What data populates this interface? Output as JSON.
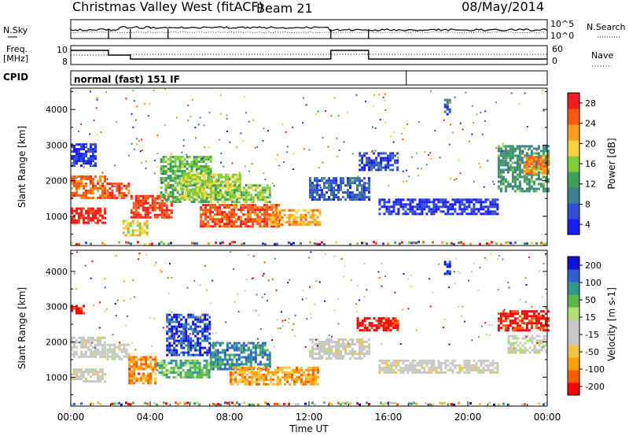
{
  "header": {
    "station": "Christmas Valley West (fitACF)",
    "beam": "Beam 21",
    "date": "08/May/2014"
  },
  "status_panels": {
    "nsky_label": "N.Sky",
    "nsearch_label": "N.Search",
    "sky_ticks": [
      "10^5",
      "10^0"
    ],
    "freq_label_1": "Freq.",
    "freq_label_2": "[MHz]",
    "freq_ticks": [
      "10",
      "8"
    ],
    "nave_label": "Nave",
    "nave_ticks": [
      "60",
      "0"
    ],
    "cpid_label": "CPID",
    "cpid_text": "normal (fast) 151 IF",
    "mode_switch_hours": [
      1.9,
      3.0,
      4.9,
      13.1,
      15.0
    ]
  },
  "chart_data": [
    {
      "type": "heatmap",
      "id": "power",
      "ylabel": "Slant Range [km]",
      "ylim": [
        180,
        4600
      ],
      "y_ticks": [
        1000,
        2000,
        3000,
        4000
      ],
      "xlim": [
        0,
        24
      ],
      "colorbar_label": "Power [dB]",
      "colorbar_ticks": [
        "28",
        "24",
        "20",
        "16",
        "12",
        "8",
        "4"
      ],
      "colorscale": [
        "#1a1aff",
        "#2f4fd8",
        "#3d7f8f",
        "#3da05a",
        "#7fcf3a",
        "#f7d23a",
        "#ff9a1a",
        "#ff5a10",
        "#ff1a1a"
      ],
      "regions": [
        {
          "t": [
            0.0,
            1.7
          ],
          "r": [
            850,
            1250
          ],
          "v": 0.95
        },
        {
          "t": [
            0.0,
            1.7
          ],
          "r": [
            1550,
            2150
          ],
          "v": 0.8
        },
        {
          "t": [
            0.0,
            1.2
          ],
          "r": [
            2450,
            3050
          ],
          "v": 0.1
        },
        {
          "t": [
            1.8,
            2.9
          ],
          "r": [
            1500,
            1950
          ],
          "v": 0.85
        },
        {
          "t": [
            2.6,
            3.8
          ],
          "r": [
            450,
            900
          ],
          "v": 0.6
        },
        {
          "t": [
            3.0,
            5.1
          ],
          "r": [
            1000,
            1600
          ],
          "v": 0.9
        },
        {
          "t": [
            4.5,
            7.0
          ],
          "r": [
            1400,
            2700
          ],
          "v": 0.45
        },
        {
          "t": [
            5.5,
            8.5
          ],
          "r": [
            1500,
            2200
          ],
          "v": 0.55
        },
        {
          "t": [
            6.5,
            10.5
          ],
          "r": [
            750,
            1350
          ],
          "v": 0.85
        },
        {
          "t": [
            7.0,
            10.0
          ],
          "r": [
            1400,
            1900
          ],
          "v": 0.5
        },
        {
          "t": [
            10.0,
            12.5
          ],
          "r": [
            750,
            1200
          ],
          "v": 0.7
        },
        {
          "t": [
            12.0,
            15.0
          ],
          "r": [
            1500,
            2100
          ],
          "v": 0.2
        },
        {
          "t": [
            14.5,
            16.5
          ],
          "r": [
            2300,
            2800
          ],
          "v": 0.15
        },
        {
          "t": [
            15.5,
            21.5
          ],
          "r": [
            1100,
            1500
          ],
          "v": 0.1
        },
        {
          "t": [
            18.8,
            19.1
          ],
          "r": [
            3900,
            4300
          ],
          "v": 0.2
        },
        {
          "t": [
            21.5,
            24.0
          ],
          "r": [
            1700,
            3000
          ],
          "v": 0.35
        },
        {
          "t": [
            22.8,
            24.0
          ],
          "r": [
            2200,
            2700
          ],
          "v": 0.75
        }
      ]
    },
    {
      "type": "heatmap",
      "id": "velocity",
      "ylabel": "Slant Range [km]",
      "ylim": [
        180,
        4600
      ],
      "y_ticks": [
        1000,
        2000,
        3000,
        4000
      ],
      "xlim": [
        0,
        24
      ],
      "x_ticks": [
        "00:00",
        "04:00",
        "08:00",
        "12:00",
        "16:00",
        "20:00",
        "00:00"
      ],
      "xlabel": "Time UT",
      "colorbar_label": "Velocity [m s-1]",
      "colorbar_ticks": [
        "200",
        "100",
        "50",
        "15",
        "-15",
        "-50",
        "-100",
        "-200"
      ],
      "colorscale": [
        "#ff0000",
        "#ff5a00",
        "#ff9f00",
        "#f4c542",
        "#c8c8c8",
        "#c8c8c8",
        "#b0e070",
        "#5ab84a",
        "#2f9a8a",
        "#2f5fd0",
        "#1010dd"
      ],
      "regions": [
        {
          "t": [
            0.0,
            1.7
          ],
          "r": [
            850,
            1250
          ],
          "v": 0.45
        },
        {
          "t": [
            0.0,
            1.7
          ],
          "r": [
            1550,
            2150
          ],
          "v": 0.45
        },
        {
          "t": [
            0.0,
            0.6
          ],
          "r": [
            2800,
            3050
          ],
          "v": 0.05
        },
        {
          "t": [
            1.8,
            2.9
          ],
          "r": [
            1500,
            1950
          ],
          "v": 0.45
        },
        {
          "t": [
            2.9,
            4.3
          ],
          "r": [
            800,
            1600
          ],
          "v": 0.2
        },
        {
          "t": [
            4.3,
            7.0
          ],
          "r": [
            1000,
            1500
          ],
          "v": 0.7
        },
        {
          "t": [
            4.8,
            7.0
          ],
          "r": [
            1600,
            2800
          ],
          "v": 0.9
        },
        {
          "t": [
            7.0,
            10.0
          ],
          "r": [
            1200,
            2000
          ],
          "v": 0.8
        },
        {
          "t": [
            8.0,
            12.5
          ],
          "r": [
            800,
            1300
          ],
          "v": 0.25
        },
        {
          "t": [
            12.0,
            15.0
          ],
          "r": [
            1500,
            2100
          ],
          "v": 0.45
        },
        {
          "t": [
            14.4,
            16.5
          ],
          "r": [
            2300,
            2700
          ],
          "v": 0.02
        },
        {
          "t": [
            15.5,
            21.5
          ],
          "r": [
            1100,
            1500
          ],
          "v": 0.45
        },
        {
          "t": [
            18.8,
            19.1
          ],
          "r": [
            3900,
            4300
          ],
          "v": 0.98
        },
        {
          "t": [
            21.5,
            24.0
          ],
          "r": [
            2300,
            2900
          ],
          "v": 0.05
        },
        {
          "t": [
            22.0,
            24.0
          ],
          "r": [
            1700,
            2200
          ],
          "v": 0.5
        }
      ]
    }
  ]
}
